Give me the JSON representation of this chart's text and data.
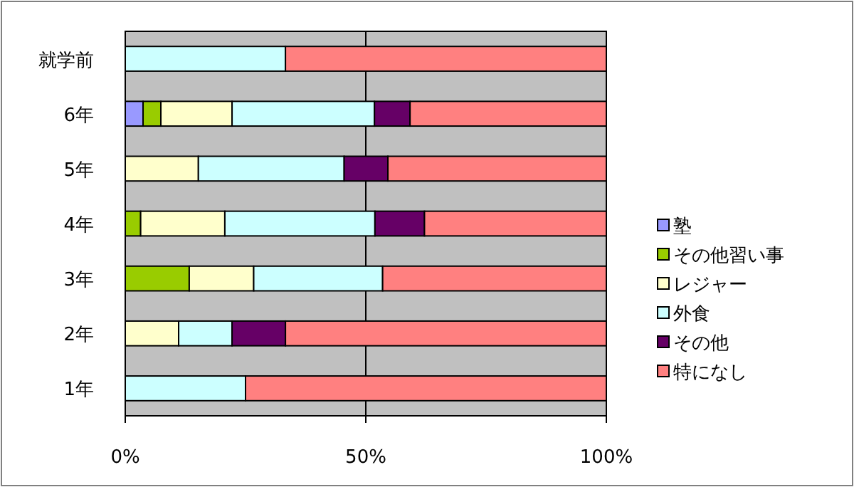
{
  "chart_data": {
    "type": "bar",
    "orientation": "horizontal",
    "stacked": true,
    "categories": [
      "就学前",
      "6年",
      "5年",
      "4年",
      "3年",
      "2年",
      "1年"
    ],
    "series": [
      {
        "name": "塾",
        "color": "#9999ff",
        "values": [
          0,
          3.7,
          0,
          0,
          0,
          0,
          0
        ]
      },
      {
        "name": "その他習い事",
        "color": "#99cc00",
        "values": [
          0,
          3.7,
          0,
          3.2,
          13.3,
          0,
          0
        ]
      },
      {
        "name": "レジャー",
        "color": "#ffffcc",
        "values": [
          0,
          14.8,
          15.2,
          17.5,
          13.4,
          11.1,
          0
        ]
      },
      {
        "name": "外食",
        "color": "#ccffff",
        "values": [
          33.3,
          29.6,
          30.3,
          31.2,
          26.8,
          11.1,
          25
        ]
      },
      {
        "name": "その他",
        "color": "#660066",
        "values": [
          0,
          7.4,
          9.1,
          10.3,
          0,
          11.1,
          0
        ]
      },
      {
        "name": "特になし",
        "color": "#ff8080",
        "values": [
          66.7,
          40.8,
          45.4,
          37.8,
          46.5,
          66.7,
          75
        ]
      }
    ],
    "xlim": [
      0,
      100
    ],
    "xticks": [
      {
        "value": 0,
        "label": "0%"
      },
      {
        "value": 50,
        "label": "50%"
      },
      {
        "value": 100,
        "label": "100%"
      }
    ],
    "grid": "x",
    "legend": "right"
  }
}
